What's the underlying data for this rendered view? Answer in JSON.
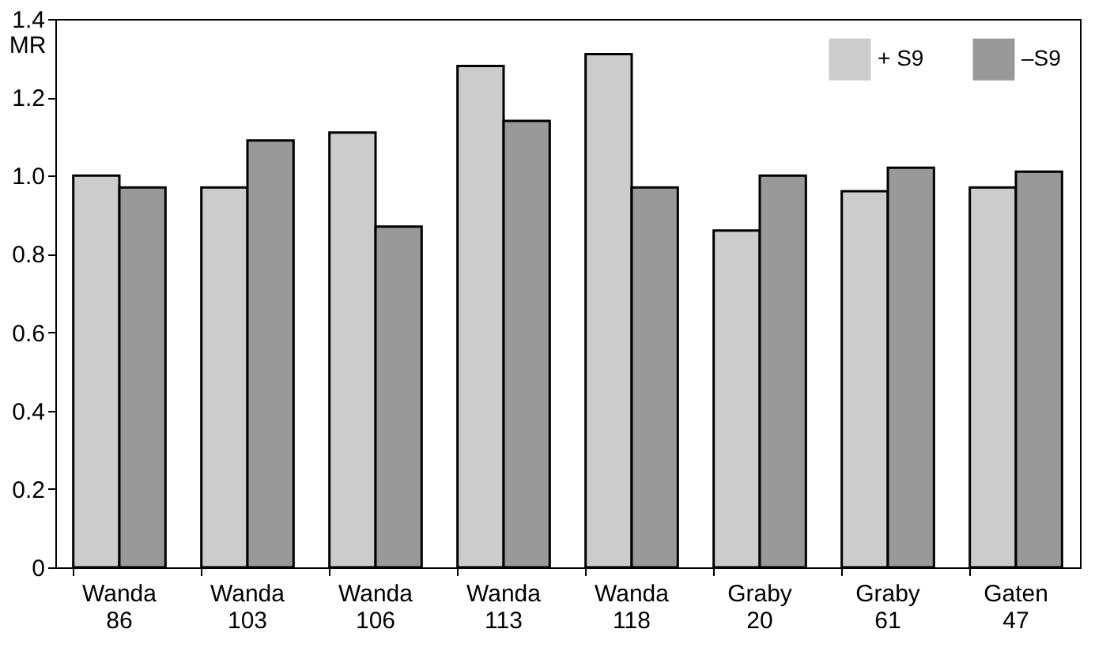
{
  "chart_data": {
    "type": "bar",
    "ylabel": "MR",
    "categories": [
      "Wanda 86",
      "Wanda 103",
      "Wanda 106",
      "Wanda 113",
      "Wanda 118",
      "Graby 20",
      "Graby 61",
      "Gaten 47"
    ],
    "series": [
      {
        "name": "+ S9",
        "color": "#cccccc",
        "values": [
          1.0,
          0.97,
          1.11,
          1.28,
          1.31,
          0.86,
          0.96,
          0.97
        ]
      },
      {
        "name": "–S9",
        "color": "#999999",
        "values": [
          0.97,
          1.09,
          0.87,
          1.14,
          0.97,
          1.0,
          1.02,
          1.01
        ]
      }
    ],
    "ylim": [
      0,
      1.4
    ],
    "yticks": [
      0,
      {
        "value": 0.2,
        "label": "0.2"
      },
      {
        "value": 0.4,
        "label": "0.4"
      },
      {
        "value": 0.6,
        "label": "0.6"
      },
      {
        "value": 0.8,
        "label": "0.8"
      },
      {
        "value": 1.0,
        "label": "1.0"
      },
      {
        "value": 1.2,
        "label": "1.2"
      },
      {
        "value": 1.4,
        "label": "1.4"
      }
    ],
    "grid": false,
    "legend": "top right"
  }
}
